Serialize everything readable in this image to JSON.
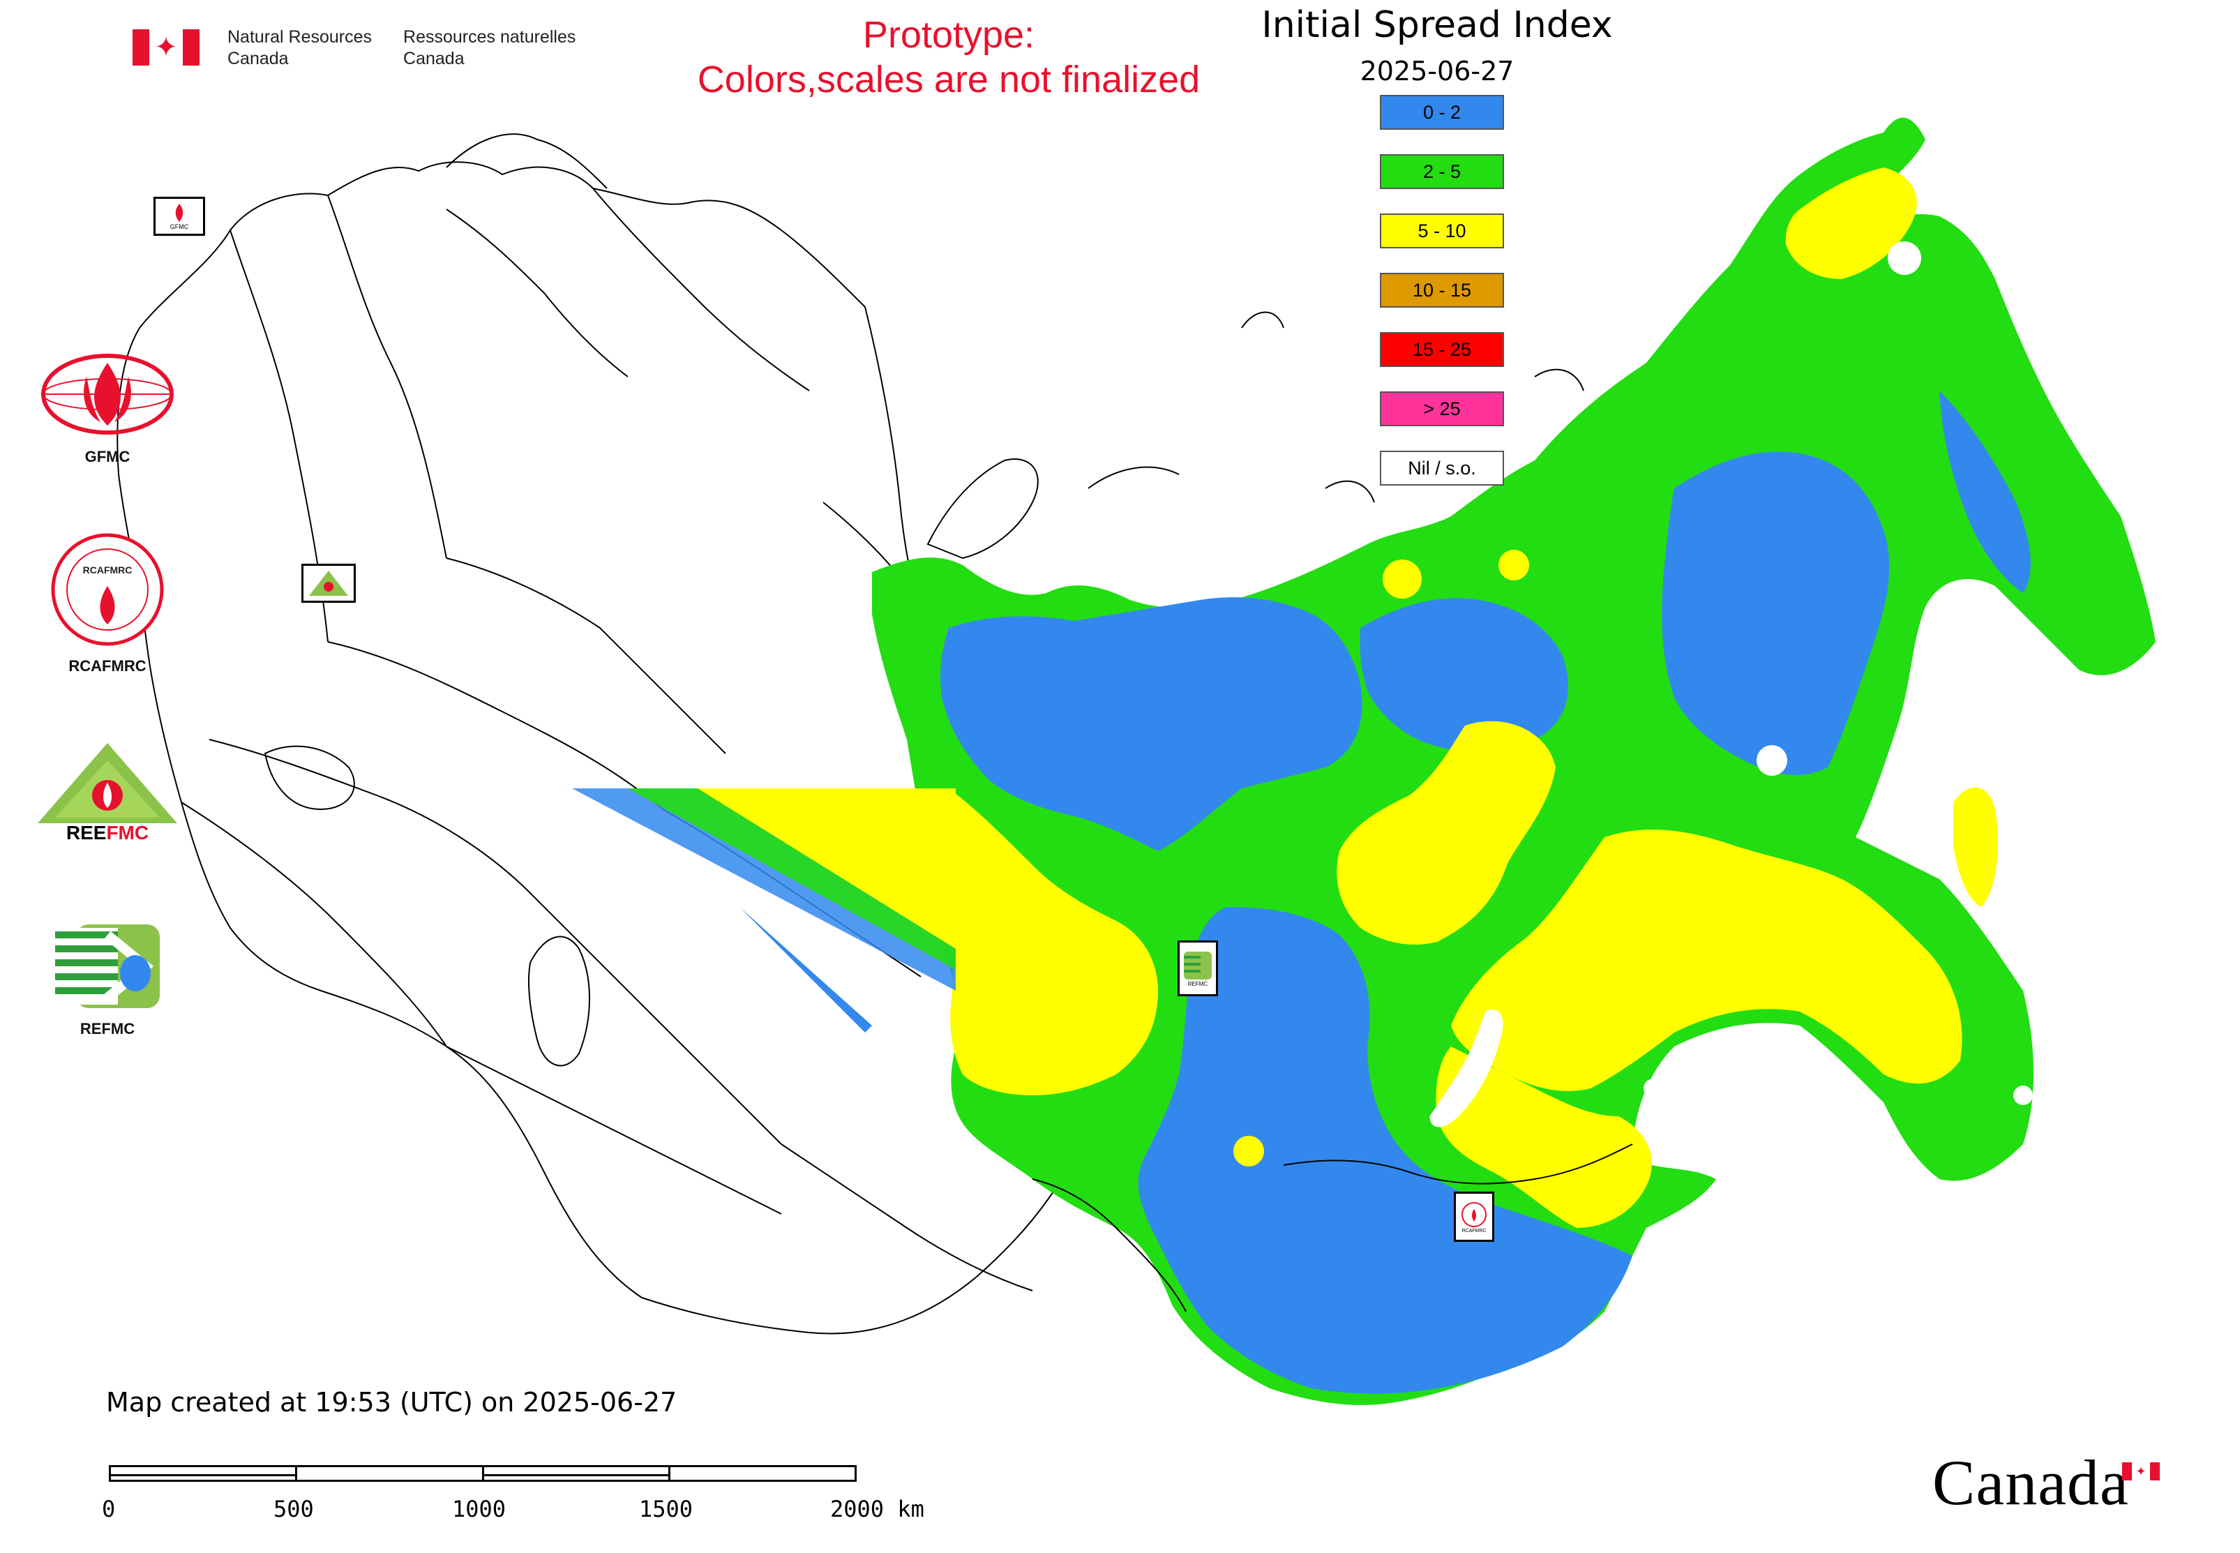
{
  "header": {
    "dept_en_line1": "Natural Resources",
    "dept_en_line2": "Canada",
    "dept_fr_line1": "Ressources naturelles",
    "dept_fr_line2": "Canada",
    "prototype_line1": "Prototype:",
    "prototype_line2": "Colors,scales are not finalized",
    "title": "Initial Spread Index",
    "date": "2025-06-27"
  },
  "legend": [
    {
      "label": "0 - 2",
      "color": "#3388ee"
    },
    {
      "label": "2 - 5",
      "color": "#22dd11"
    },
    {
      "label": "5 - 10",
      "color": "#ffff00"
    },
    {
      "label": "10 - 15",
      "color": "#dd9900"
    },
    {
      "label": "15 - 25",
      "color": "#ff0000"
    },
    {
      "label": "> 25",
      "color": "#ff3399"
    },
    {
      "label": "Nil / s.o.",
      "color": "#ffffff"
    }
  ],
  "partners": {
    "gfmc": "GFMC",
    "rcafmrc": "RCAFMRC",
    "reefmc": "REEFMC",
    "refmc": "REFMC"
  },
  "map_stamps": {
    "gfmc_small": "GFMC",
    "reefmc_small": "REEFMC",
    "refmc_small": "REFMC",
    "rcafmrc_small": "RCAFMRC"
  },
  "footer": {
    "created": "Map created at 19:53 (UTC) on 2025-06-27",
    "scale_labels": [
      "0",
      "500",
      "1000",
      "1500",
      "2000 km"
    ],
    "wordmark": "Canada"
  },
  "colors": {
    "blue": "#3388ee",
    "green": "#22dd11",
    "yellow": "#ffff00",
    "orange": "#dd9900",
    "red": "#ff0000",
    "pink": "#ff3399",
    "brand_red": "#e8112d"
  }
}
